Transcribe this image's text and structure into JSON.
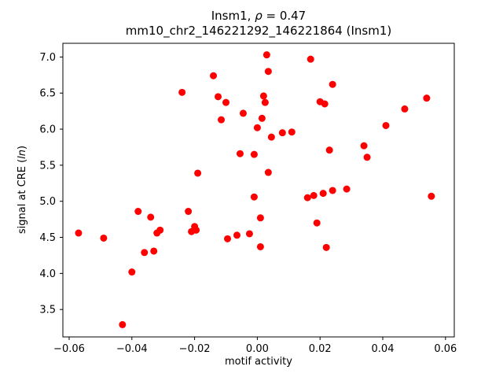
{
  "chart_data": {
    "type": "scatter",
    "title_line1_prefix": "Insm1, ",
    "title_line1_rho": "ρ",
    "title_line1_suffix": " = 0.47",
    "title_line2": "mm10_chr2_146221292_146221864 (Insm1)",
    "xlabel": "motif activity",
    "ylabel_prefix": "signal at CRE (",
    "ylabel_italic": "ln",
    "ylabel_suffix": ")",
    "legend": "none",
    "grid": false,
    "marker_color": "#ff0000",
    "marker_radius": 4.5,
    "xlim": [
      -0.062,
      0.0628
    ],
    "ylim": [
      3.12,
      7.19
    ],
    "xtick_values": [
      -0.06,
      -0.04,
      -0.02,
      0.0,
      0.02,
      0.04,
      0.06
    ],
    "xtick_labels": [
      "−0.06",
      "−0.04",
      "−0.02",
      "0.00",
      "0.02",
      "0.04",
      "0.06"
    ],
    "ytick_values": [
      3.5,
      4.0,
      4.5,
      5.0,
      5.5,
      6.0,
      6.5,
      7.0
    ],
    "ytick_labels": [
      "3.5",
      "4.0",
      "4.5",
      "5.0",
      "5.5",
      "6.0",
      "6.5",
      "7.0"
    ],
    "points": [
      [
        -0.057,
        4.56
      ],
      [
        -0.049,
        4.49
      ],
      [
        -0.043,
        3.29
      ],
      [
        -0.04,
        4.02
      ],
      [
        -0.038,
        4.86
      ],
      [
        -0.036,
        4.29
      ],
      [
        -0.034,
        4.78
      ],
      [
        -0.033,
        4.31
      ],
      [
        -0.032,
        4.56
      ],
      [
        -0.031,
        4.6
      ],
      [
        -0.024,
        6.51
      ],
      [
        -0.022,
        4.86
      ],
      [
        -0.021,
        4.58
      ],
      [
        -0.02,
        4.65
      ],
      [
        -0.0195,
        4.6
      ],
      [
        -0.019,
        5.39
      ],
      [
        -0.014,
        6.74
      ],
      [
        -0.0125,
        6.45
      ],
      [
        -0.0115,
        6.13
      ],
      [
        -0.01,
        6.37
      ],
      [
        -0.0095,
        4.48
      ],
      [
        -0.0065,
        4.53
      ],
      [
        -0.0055,
        5.66
      ],
      [
        -0.0045,
        6.22
      ],
      [
        -0.0025,
        4.55
      ],
      [
        -0.001,
        5.65
      ],
      [
        -0.001,
        5.06
      ],
      [
        0.0,
        6.02
      ],
      [
        0.001,
        4.77
      ],
      [
        0.001,
        4.37
      ],
      [
        0.0015,
        6.15
      ],
      [
        0.002,
        6.46
      ],
      [
        0.0025,
        6.37
      ],
      [
        0.003,
        7.03
      ],
      [
        0.0035,
        6.8
      ],
      [
        0.0035,
        5.4
      ],
      [
        0.0045,
        5.89
      ],
      [
        0.008,
        5.95
      ],
      [
        0.011,
        5.96
      ],
      [
        0.017,
        6.97
      ],
      [
        0.016,
        5.05
      ],
      [
        0.018,
        5.08
      ],
      [
        0.019,
        4.7
      ],
      [
        0.02,
        6.38
      ],
      [
        0.0215,
        6.35
      ],
      [
        0.021,
        5.11
      ],
      [
        0.022,
        4.36
      ],
      [
        0.023,
        5.71
      ],
      [
        0.024,
        6.62
      ],
      [
        0.024,
        5.15
      ],
      [
        0.0285,
        5.17
      ],
      [
        0.034,
        5.77
      ],
      [
        0.035,
        5.61
      ],
      [
        0.041,
        6.05
      ],
      [
        0.047,
        6.28
      ],
      [
        0.054,
        6.43
      ],
      [
        0.0555,
        5.07
      ]
    ]
  }
}
